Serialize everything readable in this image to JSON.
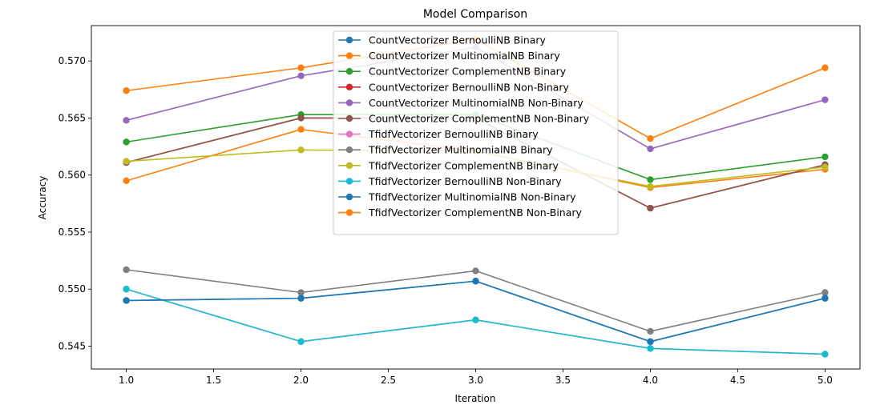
{
  "chart_data": {
    "type": "line",
    "title": "Model Comparison",
    "xlabel": "Iteration",
    "ylabel": "Accuracy",
    "xlim": [
      0.8,
      5.2
    ],
    "ylim": [
      0.543,
      0.5731
    ],
    "xticks": [
      "1.0",
      "1.5",
      "2.0",
      "2.5",
      "3.0",
      "3.5",
      "4.0",
      "4.5",
      "5.0"
    ],
    "yticks": [
      "0.545",
      "0.550",
      "0.555",
      "0.560",
      "0.565",
      "0.570"
    ],
    "legend_position": "upper-center",
    "x": [
      1,
      2,
      3,
      4,
      5
    ],
    "series": [
      {
        "name": "CountVectorizer BernoulliNB Binary",
        "color": "#1f77b4",
        "values": [
          0.549,
          0.5492,
          0.5507,
          0.5454,
          0.5492
        ]
      },
      {
        "name": "CountVectorizer MultinomialNB Binary",
        "color": "#ff7f0e",
        "values": [
          0.5595,
          0.564,
          0.5621,
          0.5589,
          0.5605
        ]
      },
      {
        "name": "CountVectorizer ComplementNB Binary",
        "color": "#2ca02c",
        "values": [
          0.5629,
          0.5653,
          0.5653,
          0.5596,
          0.5616
        ]
      },
      {
        "name": "CountVectorizer BernoulliNB Non-Binary",
        "color": "#d62728",
        "values": [
          0.5611,
          0.565,
          0.565,
          0.5571,
          0.5609
        ]
      },
      {
        "name": "CountVectorizer MultinomialNB Non-Binary",
        "color": "#9467bd",
        "values": [
          0.5648,
          0.5687,
          0.5712,
          0.5623,
          0.5666
        ]
      },
      {
        "name": "CountVectorizer ComplementNB Non-Binary",
        "color": "#8c564b",
        "values": [
          0.5611,
          0.565,
          0.565,
          0.5571,
          0.5609
        ]
      },
      {
        "name": "TfidfVectorizer BernoulliNB Binary",
        "color": "#e377c2",
        "values": [
          0.55,
          0.5454,
          0.5473,
          0.5448,
          0.5443
        ]
      },
      {
        "name": "TfidfVectorizer MultinomialNB Binary",
        "color": "#7f7f7f",
        "values": [
          0.5517,
          0.5497,
          0.5516,
          0.5463,
          0.5497
        ]
      },
      {
        "name": "TfidfVectorizer ComplementNB Binary",
        "color": "#bcbd22",
        "values": [
          0.5612,
          0.5622,
          0.5621,
          0.559,
          0.5607
        ]
      },
      {
        "name": "TfidfVectorizer BernoulliNB Non-Binary",
        "color": "#17becf",
        "values": [
          0.55,
          0.5454,
          0.5473,
          0.5448,
          0.5443
        ]
      },
      {
        "name": "TfidfVectorizer MultinomialNB Non-Binary",
        "color": "#1f77b4",
        "values": [
          0.549,
          0.5492,
          0.5507,
          0.5454,
          0.5492
        ]
      },
      {
        "name": "TfidfVectorizer ComplementNB Non-Binary",
        "color": "#ff7f0e",
        "values": [
          0.5674,
          0.5694,
          0.5719,
          0.5632,
          0.5694
        ]
      }
    ]
  }
}
